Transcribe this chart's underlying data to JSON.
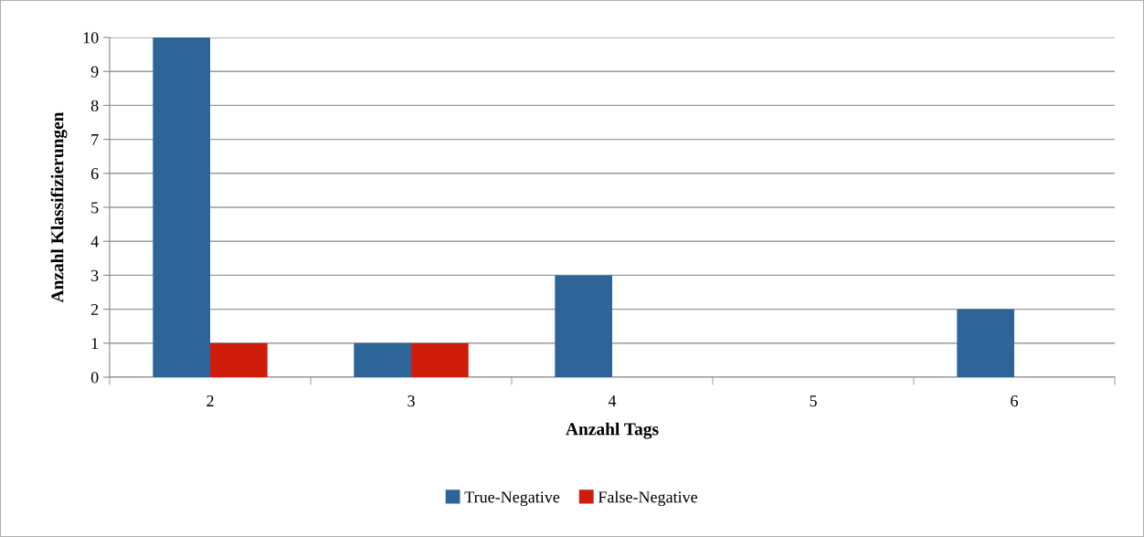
{
  "chart_data": {
    "type": "bar",
    "xlabel": "Anzahl Tags",
    "ylabel": "Anzahl Klassifizierungen",
    "categories": [
      "2",
      "3",
      "4",
      "5",
      "6"
    ],
    "series": [
      {
        "name": "True-Negative",
        "color": "#2e6599",
        "values": [
          10,
          1,
          3,
          0,
          2
        ]
      },
      {
        "name": "False-Negative",
        "color": "#d01c0a",
        "values": [
          1,
          1,
          0,
          0,
          0
        ]
      }
    ],
    "ylim": [
      0,
      10
    ],
    "yticks": [
      0,
      1,
      2,
      3,
      4,
      5,
      6,
      7,
      8,
      9,
      10
    ],
    "grid": "y",
    "legend": "bottom"
  }
}
